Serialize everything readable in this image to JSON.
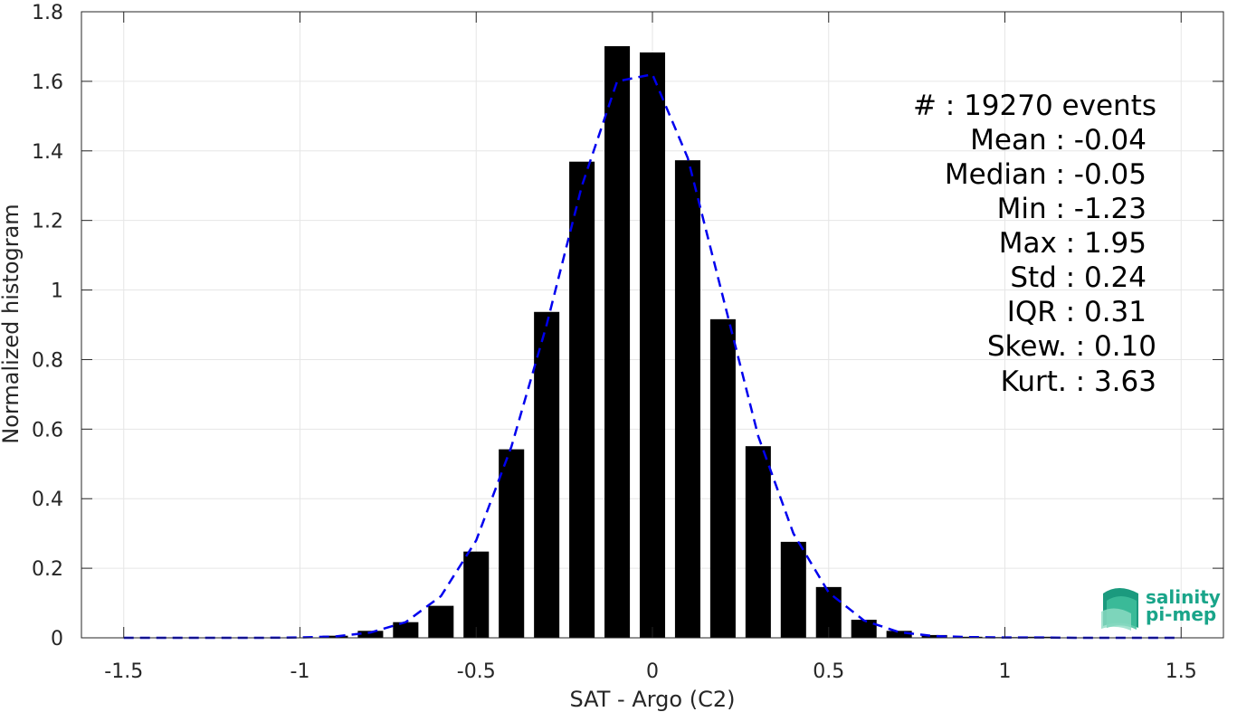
{
  "chart_data": {
    "type": "bar",
    "xlabel": "SAT - Argo (C2)",
    "ylabel": "Normalized histogram",
    "xlim": [
      -1.62,
      1.62
    ],
    "ylim": [
      0,
      1.8
    ],
    "xticks": [
      -1.5,
      -1,
      -0.5,
      0,
      0.5,
      1,
      1.5
    ],
    "xtick_labels": [
      "-1.5",
      "-1",
      "-0.5",
      "0",
      "0.5",
      "1",
      "1.5"
    ],
    "yticks": [
      0,
      0.2,
      0.4,
      0.6,
      0.8,
      1,
      1.2,
      1.4,
      1.6,
      1.8
    ],
    "ytick_labels": [
      "0",
      "0.2",
      "0.4",
      "0.6",
      "0.8",
      "1",
      "1.2",
      "1.4",
      "1.6",
      "1.8"
    ],
    "grid": true,
    "bin_width": 0.1,
    "series": [
      {
        "kind": "bar",
        "color": "#000000",
        "x": [
          -1.5,
          -1.4,
          -1.3,
          -1.2,
          -1.1,
          -1.0,
          -0.9,
          -0.8,
          -0.7,
          -0.6,
          -0.5,
          -0.4,
          -0.3,
          -0.2,
          -0.1,
          0.0,
          0.1,
          0.2,
          0.3,
          0.4,
          0.5,
          0.6,
          0.7,
          0.8,
          0.9,
          1.0,
          1.1,
          1.2,
          1.3,
          1.4,
          1.5
        ],
        "values": [
          0,
          0,
          0,
          0,
          0,
          0.001,
          0.006,
          0.02,
          0.045,
          0.092,
          0.248,
          0.542,
          0.937,
          1.369,
          1.701,
          1.683,
          1.373,
          0.916,
          0.551,
          0.276,
          0.146,
          0.052,
          0.02,
          0.008,
          0.003,
          0.002,
          0.003,
          0.001,
          0.001,
          0.001,
          0.001
        ]
      },
      {
        "kind": "line",
        "style": "dashed",
        "color": "#0000ee",
        "x": [
          -1.5,
          -1.4,
          -1.3,
          -1.2,
          -1.1,
          -1.0,
          -0.9,
          -0.8,
          -0.7,
          -0.6,
          -0.5,
          -0.4,
          -0.3,
          -0.2,
          -0.1,
          0.0,
          0.1,
          0.2,
          0.3,
          0.4,
          0.5,
          0.6,
          0.7,
          0.8,
          0.9,
          1.0,
          1.1,
          1.2,
          1.3,
          1.4,
          1.5
        ],
        "values": [
          0,
          0,
          0,
          0,
          0,
          0.001,
          0.004,
          0.015,
          0.045,
          0.12,
          0.28,
          0.55,
          0.9,
          1.3,
          1.6,
          1.62,
          1.38,
          0.98,
          0.58,
          0.3,
          0.13,
          0.05,
          0.016,
          0.005,
          0.002,
          0.001,
          0.001,
          0,
          0,
          0,
          0
        ]
      }
    ],
    "annotations": [
      "#  : 19270 events",
      "Mean : -0.04",
      "Median : -0.05",
      "Min : -1.23",
      "Max : 1.95",
      "Std : 0.24",
      "IQR : 0.31",
      "Skew. : 0.10",
      "Kurt. : 3.63"
    ]
  },
  "logo": {
    "line1": "salinity",
    "line2": "pi-mep",
    "color": "#1aa58a"
  }
}
